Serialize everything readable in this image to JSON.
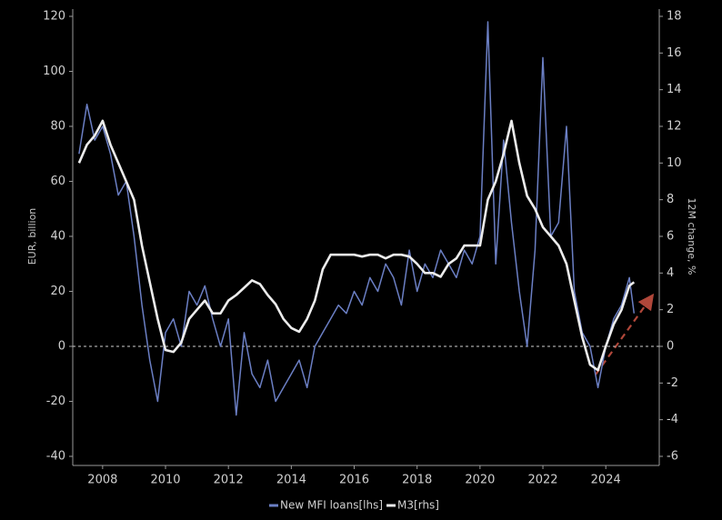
{
  "chart_data": {
    "type": "line",
    "y_label": "EUR, billion",
    "y2_label": "12M change, %",
    "x": [
      2007.25,
      2007.5,
      2007.75,
      2008.0,
      2008.25,
      2008.5,
      2008.75,
      2009.0,
      2009.25,
      2009.5,
      2009.75,
      2010.0,
      2010.25,
      2010.5,
      2010.75,
      2011.0,
      2011.25,
      2011.5,
      2011.75,
      2012.0,
      2012.25,
      2012.5,
      2012.75,
      2013.0,
      2013.25,
      2013.5,
      2013.75,
      2014.0,
      2014.25,
      2014.5,
      2014.75,
      2015.0,
      2015.25,
      2015.5,
      2015.75,
      2016.0,
      2016.25,
      2016.5,
      2016.75,
      2017.0,
      2017.25,
      2017.5,
      2017.75,
      2018.0,
      2018.25,
      2018.5,
      2018.75,
      2019.0,
      2019.25,
      2019.5,
      2019.75,
      2020.0,
      2020.25,
      2020.5,
      2020.75,
      2021.0,
      2021.25,
      2021.5,
      2021.75,
      2022.0,
      2022.25,
      2022.5,
      2022.75,
      2023.0,
      2023.25,
      2023.5,
      2023.75,
      2024.0,
      2024.25,
      2024.5,
      2024.75,
      2024.9
    ],
    "series": [
      {
        "name": "New MFI loans[lhs]",
        "color": "#6b7fc4",
        "axis": "y",
        "values": [
          70,
          88,
          75,
          80,
          70,
          55,
          60,
          40,
          15,
          -5,
          -20,
          5,
          10,
          0,
          20,
          15,
          22,
          10,
          0,
          10,
          -25,
          5,
          -10,
          -15,
          -5,
          -20,
          -15,
          -10,
          -5,
          -15,
          0,
          5,
          10,
          15,
          12,
          20,
          15,
          25,
          20,
          30,
          25,
          15,
          35,
          20,
          30,
          25,
          35,
          30,
          25,
          35,
          30,
          40,
          118,
          30,
          75,
          45,
          20,
          0,
          35,
          105,
          40,
          45,
          80,
          20,
          5,
          0,
          -15,
          0,
          10,
          15,
          25,
          12
        ]
      },
      {
        "name": "M3[rhs]",
        "color": "#ececec",
        "axis": "y2",
        "values": [
          10,
          11,
          11.5,
          12.3,
          11,
          10,
          9,
          8,
          5.5,
          3.5,
          1.5,
          -0.2,
          -0.3,
          0.2,
          1.5,
          2,
          2.5,
          1.8,
          1.8,
          2.5,
          2.8,
          3.2,
          3.6,
          3.4,
          2.8,
          2.3,
          1.5,
          1,
          0.8,
          1.5,
          2.5,
          4.2,
          5,
          5,
          5,
          5,
          4.9,
          5,
          5,
          4.8,
          5,
          5,
          4.9,
          4.5,
          4,
          4,
          3.8,
          4.5,
          4.8,
          5.5,
          5.5,
          5.5,
          8,
          9,
          10.5,
          12.3,
          10,
          8.2,
          7.5,
          6.5,
          6,
          5.5,
          4.5,
          2.5,
          0.5,
          -1,
          -1.3,
          0,
          1.2,
          2,
          3.3,
          3.5
        ]
      }
    ],
    "xlim": [
      2007.05,
      2025.7
    ],
    "xticks": [
      2008,
      2010,
      2012,
      2014,
      2016,
      2018,
      2020,
      2022,
      2024
    ],
    "ylim": [
      -40,
      120
    ],
    "yticks": [
      -40,
      -20,
      0,
      20,
      40,
      60,
      80,
      100,
      120
    ],
    "y2lim": [
      -6,
      18
    ],
    "y2ticks": [
      -6,
      -4,
      -2,
      0,
      2,
      4,
      6,
      8,
      10,
      12,
      14,
      16,
      18
    ]
  }
}
